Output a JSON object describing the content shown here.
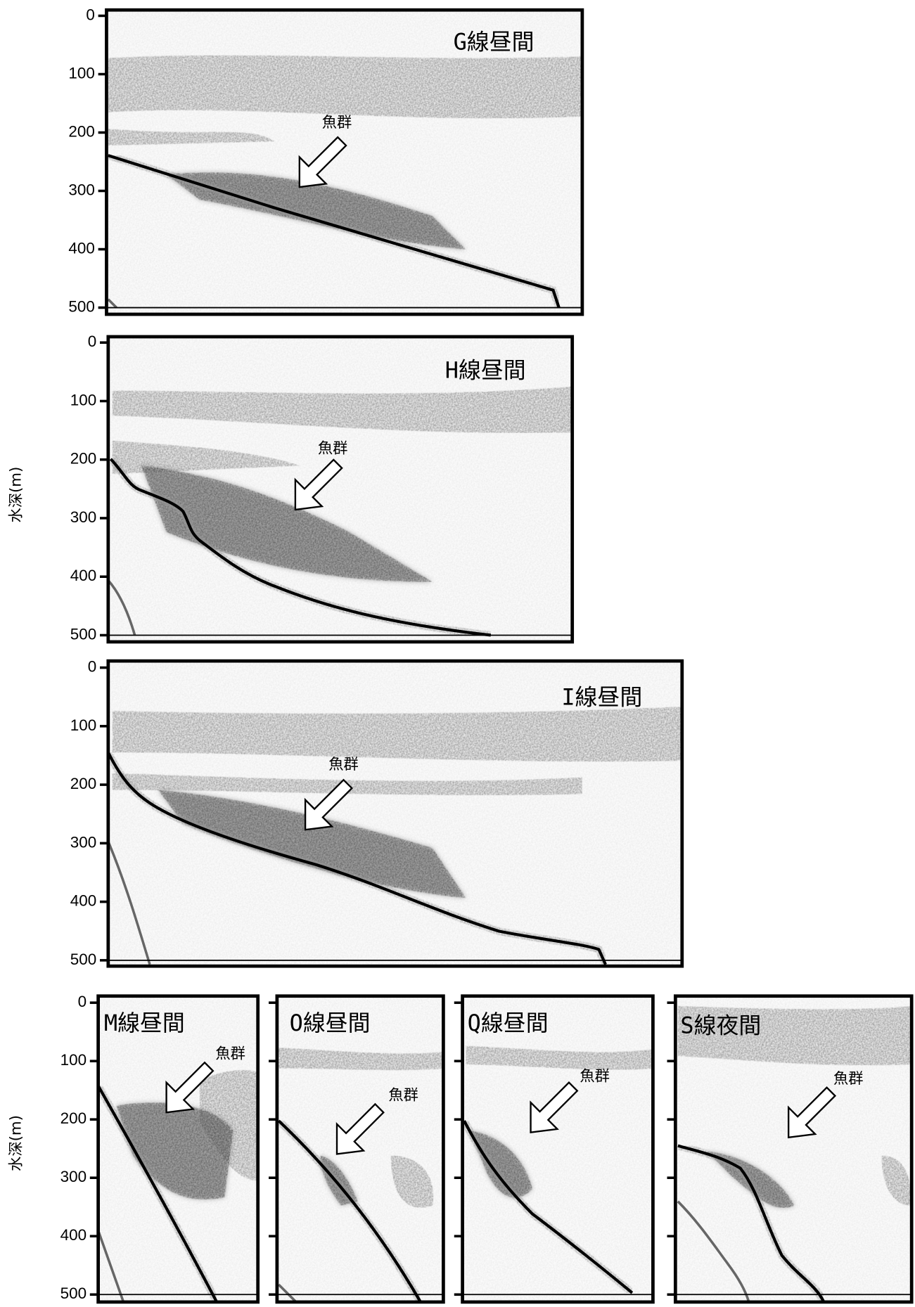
{
  "y_label": "水深(m)",
  "yticks": [
    0,
    100,
    200,
    300,
    400,
    500
  ],
  "panels": [
    {
      "label": "G線昼間",
      "annotation": "魚群"
    },
    {
      "label": "H線昼間",
      "annotation": "魚群"
    },
    {
      "label": "I線昼間",
      "annotation": "魚群"
    },
    {
      "label": "M線昼間",
      "annotation": "魚群"
    },
    {
      "label": "O線昼間",
      "annotation": "魚群"
    },
    {
      "label": "Q線昼間",
      "annotation": "魚群"
    },
    {
      "label": "S線夜間",
      "annotation": "魚群"
    }
  ]
}
